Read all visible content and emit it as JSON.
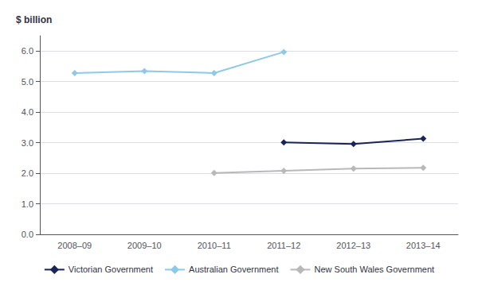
{
  "chart_data": {
    "type": "line",
    "ylabel": "$ billion",
    "categories": [
      "2008–09",
      "2009–10",
      "2010–11",
      "2011–12",
      "2012–13",
      "2013–14"
    ],
    "series": [
      {
        "name": "Victorian Government",
        "color": "#1a2456",
        "marker": "diamond",
        "values": [
          null,
          null,
          null,
          3.01,
          2.96,
          3.13
        ]
      },
      {
        "name": "Australian Government",
        "color": "#8fc8e8",
        "marker": "diamond",
        "values": [
          5.28,
          5.34,
          5.28,
          5.97,
          null,
          null
        ]
      },
      {
        "name": "New South Wales Government",
        "color": "#b8b8b8",
        "marker": "diamond",
        "values": [
          null,
          null,
          2.01,
          2.08,
          2.15,
          2.18
        ]
      }
    ],
    "ylim": [
      0.0,
      6.5
    ],
    "yticks": [
      {
        "value": 0.0,
        "label": "0.0"
      },
      {
        "value": 1.0,
        "label": "1.0"
      },
      {
        "value": 2.0,
        "label": "2.0"
      },
      {
        "value": 3.0,
        "label": "3.0"
      },
      {
        "value": 4.0,
        "label": "4.0"
      },
      {
        "value": 5.0,
        "label": "5.0"
      },
      {
        "value": 6.0,
        "label": "6.0"
      }
    ],
    "grid": true,
    "legend": "bottom"
  }
}
